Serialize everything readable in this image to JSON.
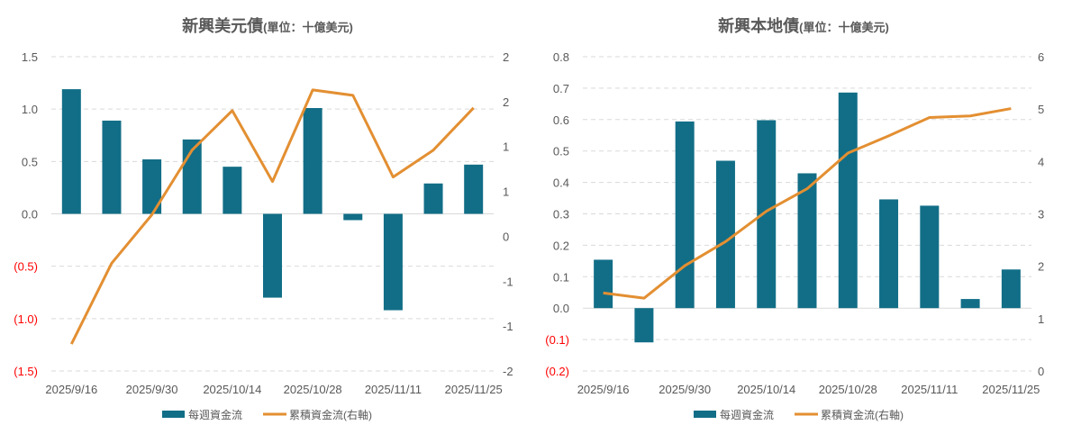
{
  "colors": {
    "bar": "#126E87",
    "line": "#E38F32",
    "negative_label": "#FF0000",
    "grid": "#D9D9D9",
    "text": "#595959"
  },
  "chart_data": [
    {
      "type": "bar+line",
      "title": "新興美元債",
      "subtitle": "(單位：十億美元)",
      "categories": [
        "2025/9/16",
        "",
        "2025/9/30",
        "",
        "2025/10/14",
        "",
        "2025/10/28",
        "",
        "2025/11/11",
        "",
        "2025/11/25"
      ],
      "series": [
        {
          "name": "每週資金流",
          "type": "bar",
          "axis": "left",
          "values": [
            1.19,
            0.89,
            0.52,
            0.71,
            0.45,
            -0.8,
            1.01,
            -0.06,
            -0.92,
            0.29,
            0.47
          ]
        },
        {
          "name": "累積資金流(右軸)",
          "type": "line",
          "axis": "right",
          "values": [
            -1.2,
            -0.3,
            0.24,
            0.96,
            1.4,
            0.61,
            1.63,
            1.57,
            0.66,
            0.96,
            1.43
          ]
        }
      ],
      "y_left": {
        "range": [
          -1.5,
          1.5
        ],
        "ticks": [
          1.5,
          1.0,
          0.5,
          0,
          -0.5,
          -1.0,
          -1.5
        ],
        "tick_labels": [
          "1.5",
          "1.0",
          "0.5",
          "0.0",
          "(0.5)",
          "(1.0)",
          "(1.5)"
        ]
      },
      "y_right": {
        "range": [
          -1.5,
          2
        ],
        "ticks": [
          2,
          1.5,
          1,
          0.5,
          0,
          -0.5,
          -1,
          -1.5
        ],
        "tick_labels": [
          "2",
          "2",
          "1",
          "1",
          "0",
          "-1",
          "-1",
          "-2"
        ]
      },
      "grid": true,
      "legend": "bottom"
    },
    {
      "type": "bar+line",
      "title": "新興本地債",
      "subtitle": "(單位：十億美元)",
      "categories": [
        "2025/9/16",
        "",
        "2025/9/30",
        "",
        "2025/10/14",
        "",
        "2025/10/28",
        "",
        "2025/11/11",
        "",
        "2025/11/25"
      ],
      "series": [
        {
          "name": "每週資金流",
          "type": "bar",
          "axis": "left",
          "values": [
            0.154,
            -0.109,
            0.594,
            0.469,
            0.598,
            0.429,
            0.686,
            0.346,
            0.326,
            0.029,
            0.123
          ]
        },
        {
          "name": "累積資金流(右軸)",
          "type": "line",
          "axis": "right",
          "values": [
            1.49,
            1.39,
            2.01,
            2.47,
            3.05,
            3.48,
            4.16,
            4.49,
            4.84,
            4.87,
            5.01
          ]
        }
      ],
      "y_left": {
        "range": [
          -0.2,
          0.8
        ],
        "ticks": [
          0.8,
          0.7,
          0.6,
          0.5,
          0.4,
          0.3,
          0.2,
          0.1,
          0,
          -0.1,
          -0.2
        ],
        "tick_labels": [
          "0.8",
          "0.7",
          "0.6",
          "0.5",
          "0.4",
          "0.3",
          "0.2",
          "0.1",
          "0.0",
          "(0.1)",
          "(0.2)"
        ]
      },
      "y_right": {
        "range": [
          0,
          6
        ],
        "ticks": [
          6,
          5,
          4,
          3,
          2,
          1,
          0
        ],
        "tick_labels": [
          "6",
          "5",
          "4",
          "3",
          "2",
          "1",
          "0"
        ]
      },
      "grid": true,
      "legend": "bottom"
    }
  ]
}
